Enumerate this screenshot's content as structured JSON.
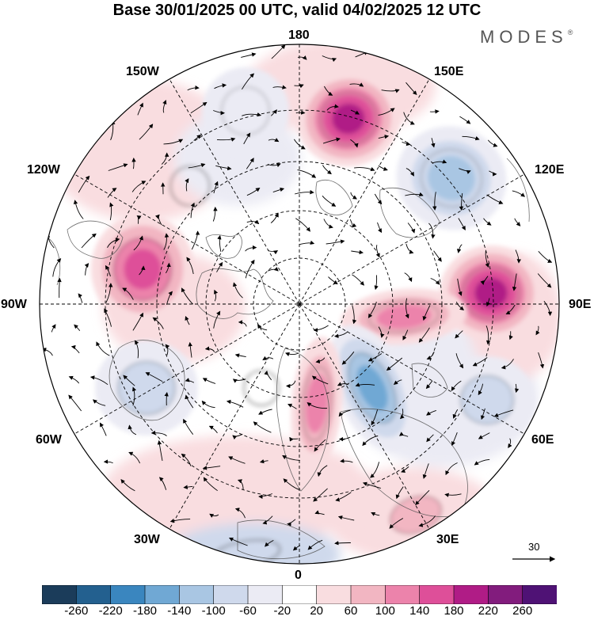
{
  "title": "Base 30/01/2025 00 UTC, valid 04/02/2025 12 UTC",
  "logo": {
    "text": "MODES",
    "mark": "®"
  },
  "longitude_labels": {
    "lon_180": "180",
    "lon_150w": "150W",
    "lon_150e": "150E",
    "lon_120w": "120W",
    "lon_120e": "120E",
    "lon_90w": "90W",
    "lon_90e": "90E",
    "lon_60w": "60W",
    "lon_60e": "60E",
    "lon_30w": "30W",
    "lon_30e": "30E",
    "lon_0": "0"
  },
  "vector_scale": {
    "label": "30"
  },
  "colorbar": {
    "ticks": [
      "-260",
      "-220",
      "-180",
      "-140",
      "-100",
      "-60",
      "-20",
      "20",
      "60",
      "100",
      "140",
      "180",
      "220",
      "260"
    ],
    "colors": [
      "#1b3c5a",
      "#23608f",
      "#3a86bf",
      "#70a8d4",
      "#a9c6e3",
      "#cfd9ec",
      "#ebebf4",
      "#ffffff",
      "#f9dde0",
      "#f2b6c2",
      "#ec83ab",
      "#de4f99",
      "#b01c86",
      "#821c7d",
      "#4f1275"
    ]
  },
  "anomalies": [
    {
      "id": "pos-150e",
      "sign": "positive",
      "level": 12
    },
    {
      "id": "neg-120e",
      "sign": "negative",
      "level": 10
    },
    {
      "id": "pos-90e",
      "sign": "positive",
      "level": 12
    },
    {
      "id": "pos-90e-tail",
      "sign": "positive",
      "level": 10
    },
    {
      "id": "neg-60e",
      "sign": "negative",
      "level": 9
    },
    {
      "id": "neg-center-east",
      "sign": "negative",
      "level": 11
    },
    {
      "id": "pos-center",
      "sign": "positive",
      "level": 10
    },
    {
      "id": "pos-30e",
      "sign": "positive",
      "level": 9
    },
    {
      "id": "pos-100w",
      "sign": "positive",
      "level": 11
    },
    {
      "id": "neg-60w",
      "sign": "negative",
      "level": 9
    },
    {
      "id": "neg-160w",
      "sign": "negative",
      "level": 8
    },
    {
      "id": "neg-130w",
      "sign": "negative",
      "level": 7
    },
    {
      "id": "neg-30w-south",
      "sign": "negative",
      "level": 7
    },
    {
      "id": "neg-center-west",
      "sign": "negative",
      "level": 7
    }
  ]
}
